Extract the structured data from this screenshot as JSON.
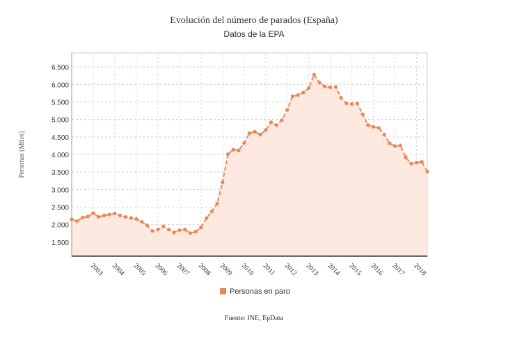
{
  "chart_data": {
    "type": "area",
    "title": "Evolución del número de parados (España)",
    "subtitle": "Datos de la EPA",
    "ylabel": "Personas (Miles)",
    "xlabel": "",
    "source": "Fuente: INE, EpData",
    "legend": {
      "label": "Personas en paro",
      "placement": "bottom-center"
    },
    "series_color": "#e8875a",
    "fill_color": "#fde9df",
    "grid": true,
    "ylim": [
      1100,
      6900
    ],
    "xlim": [
      2002.0,
      2018.5
    ],
    "yticks": [
      1500,
      2000,
      2500,
      3000,
      3500,
      4000,
      4500,
      5000,
      5500,
      6000,
      6500
    ],
    "ytick_labels": [
      "1.500",
      "2.000",
      "2.500",
      "3.000",
      "3.500",
      "4.000",
      "4.500",
      "5.000",
      "5.500",
      "6.000",
      "6.500"
    ],
    "xticks": [
      2003,
      2004,
      2005,
      2006,
      2007,
      2008,
      2009,
      2010,
      2011,
      2012,
      2013,
      2014,
      2015,
      2016,
      2017,
      2018
    ],
    "xtick_labels": [
      "2003",
      "2004",
      "2005",
      "2006",
      "2007",
      "2008",
      "2009",
      "2010",
      "2011",
      "2012",
      "2013",
      "2014",
      "2015",
      "2016",
      "2017",
      "2018"
    ],
    "x": [
      2002.0,
      2002.25,
      2002.5,
      2002.75,
      2003.0,
      2003.25,
      2003.5,
      2003.75,
      2004.0,
      2004.25,
      2004.5,
      2004.75,
      2005.0,
      2005.25,
      2005.5,
      2005.75,
      2006.0,
      2006.25,
      2006.5,
      2006.75,
      2007.0,
      2007.25,
      2007.5,
      2007.75,
      2008.0,
      2008.25,
      2008.5,
      2008.75,
      2009.0,
      2009.25,
      2009.5,
      2009.75,
      2010.0,
      2010.25,
      2010.5,
      2010.75,
      2011.0,
      2011.25,
      2011.5,
      2011.75,
      2012.0,
      2012.25,
      2012.5,
      2012.75,
      2013.0,
      2013.25,
      2013.5,
      2013.75,
      2014.0,
      2014.25,
      2014.5,
      2014.75,
      2015.0,
      2015.25,
      2015.5,
      2015.75,
      2016.0,
      2016.25,
      2016.5,
      2016.75,
      2017.0,
      2017.25,
      2017.5,
      2017.75,
      2018.0,
      2018.25,
      2018.5
    ],
    "values": [
      2150,
      2100,
      2200,
      2230,
      2330,
      2220,
      2260,
      2290,
      2320,
      2260,
      2220,
      2190,
      2160,
      2080,
      1980,
      1820,
      1860,
      1950,
      1860,
      1780,
      1840,
      1860,
      1760,
      1800,
      1920,
      2180,
      2380,
      2600,
      3210,
      4010,
      4140,
      4120,
      4330,
      4610,
      4650,
      4570,
      4700,
      4920,
      4840,
      4980,
      5280,
      5660,
      5700,
      5770,
      5900,
      6280,
      6050,
      5940,
      5920,
      5930,
      5620,
      5460,
      5440,
      5460,
      5150,
      4840,
      4790,
      4760,
      4570,
      4320,
      4240,
      4260,
      3920,
      3740,
      3770,
      3790,
      3510
    ]
  }
}
